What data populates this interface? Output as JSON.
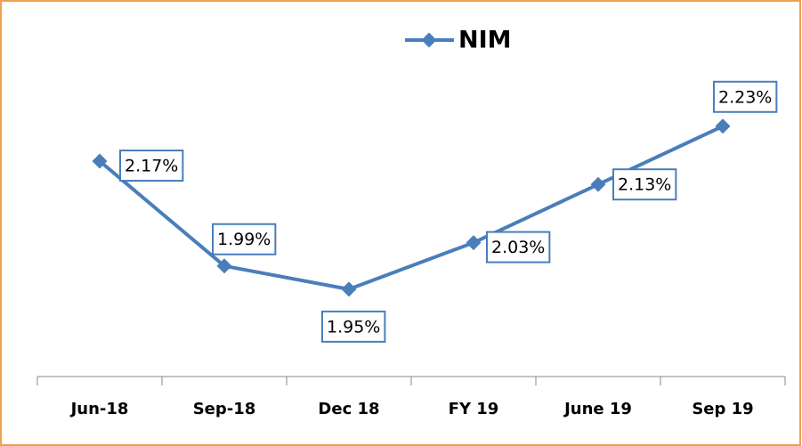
{
  "chart_data": {
    "type": "line",
    "categories": [
      "Jun-18",
      "Sep-18",
      "Dec 18",
      "FY 19",
      "June 19",
      "Sep 19"
    ],
    "series": [
      {
        "name": "NIM",
        "color": "#4a7ebb",
        "values": [
          2.17,
          1.99,
          1.95,
          2.03,
          2.13,
          2.23
        ],
        "value_labels": [
          "2.17%",
          "1.99%",
          "1.95%",
          "2.03%",
          "2.13%",
          "2.23%"
        ]
      }
    ],
    "ylim": [
      1.8,
      2.3
    ],
    "legend": "top"
  }
}
